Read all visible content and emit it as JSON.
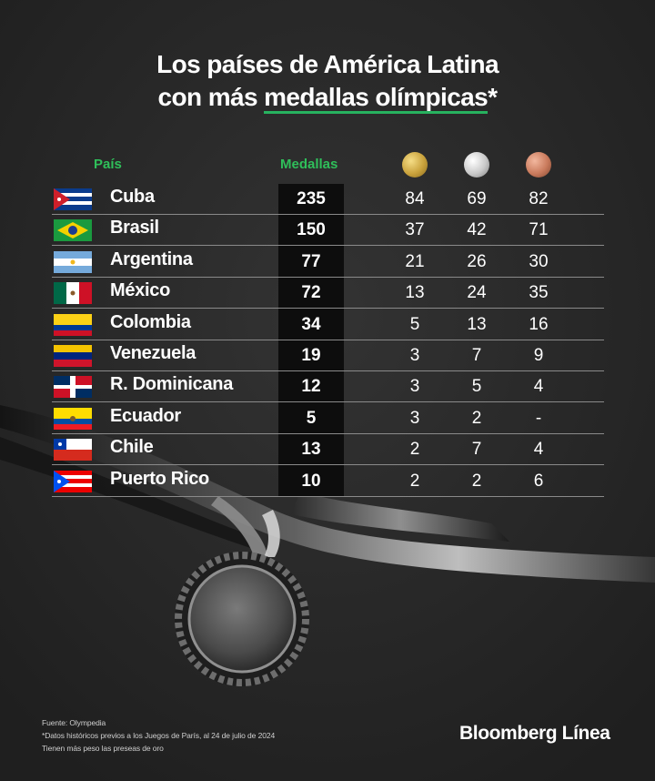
{
  "title_line1": "Los países de América Latina",
  "title_line2_prefix": "con más ",
  "title_line2_highlight": "medallas olímpicas",
  "title_line2_suffix": "*",
  "headers": {
    "country": "País",
    "total": "Medallas"
  },
  "medal_icons": [
    "gold-medal",
    "silver-medal",
    "bronze-medal"
  ],
  "colors": {
    "accent_green": "#2fbf5a",
    "gold": "#d4a941",
    "silver": "#c9c9c9",
    "bronze": "#c97a5c"
  },
  "rows": [
    {
      "country": "Cuba",
      "total": "235",
      "gold": "84",
      "silver": "69",
      "bronze": "82"
    },
    {
      "country": "Brasil",
      "total": "150",
      "gold": "37",
      "silver": "42",
      "bronze": "71"
    },
    {
      "country": "Argentina",
      "total": "77",
      "gold": "21",
      "silver": "26",
      "bronze": "30"
    },
    {
      "country": "México",
      "total": "72",
      "gold": "13",
      "silver": "24",
      "bronze": "35"
    },
    {
      "country": "Colombia",
      "total": "34",
      "gold": "5",
      "silver": "13",
      "bronze": "16"
    },
    {
      "country": "Venezuela",
      "total": "19",
      "gold": "3",
      "silver": "7",
      "bronze": "9"
    },
    {
      "country": "R. Dominicana",
      "total": "12",
      "gold": "3",
      "silver": "5",
      "bronze": "4"
    },
    {
      "country": "Ecuador",
      "total": "5",
      "gold": "3",
      "silver": "2",
      "bronze": "-"
    },
    {
      "country": "Chile",
      "total": "13",
      "gold": "2",
      "silver": "7",
      "bronze": "4"
    },
    {
      "country": "Puerto Rico",
      "total": "10",
      "gold": "2",
      "silver": "2",
      "bronze": "6"
    }
  ],
  "chart_data": {
    "type": "table",
    "columns": [
      "País",
      "Medallas",
      "gold",
      "silver",
      "bronze"
    ],
    "rows": [
      [
        "Cuba",
        235,
        84,
        69,
        82
      ],
      [
        "Brasil",
        150,
        37,
        42,
        71
      ],
      [
        "Argentina",
        77,
        21,
        26,
        30
      ],
      [
        "México",
        72,
        13,
        24,
        35
      ],
      [
        "Colombia",
        34,
        5,
        13,
        16
      ],
      [
        "Venezuela",
        19,
        3,
        7,
        9
      ],
      [
        "R. Dominicana",
        12,
        3,
        5,
        4
      ],
      [
        "Ecuador",
        5,
        3,
        2,
        "-"
      ],
      [
        "Chile",
        13,
        2,
        7,
        4
      ],
      [
        "Puerto Rico",
        10,
        2,
        2,
        6
      ]
    ]
  },
  "footnotes": {
    "source": "Fuente: Olympedia",
    "note1": "*Datos históricos previos a los Juegos de París, al 24 de julio de 2024",
    "note2": "Tienen más peso las preseas de oro"
  },
  "brand": "Bloomberg Línea"
}
